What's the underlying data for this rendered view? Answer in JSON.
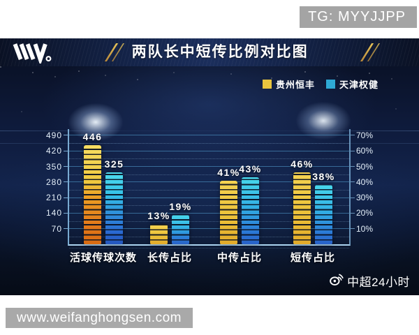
{
  "page": {
    "tg_badge": "TG: MYYJJPP",
    "url_badge": "www.weifanghongsen.com"
  },
  "header": {
    "logo": "W。",
    "title": "两队长中短传比例对比图"
  },
  "legend": [
    {
      "label": "贵州恒丰",
      "color": "#e9c53e"
    },
    {
      "label": "天津权健",
      "color": "#2ea9d4"
    }
  ],
  "credit": {
    "icon": "weibo-icon",
    "label": "中超24小时"
  },
  "chart_data": {
    "type": "bar",
    "title": "两队长中短传比例对比图",
    "categories": [
      "活球传球次数",
      "长传占比",
      "中传占比",
      "短传占比"
    ],
    "series": [
      {
        "name": "贵州恒丰",
        "color": "#e9c53e",
        "values": [
          446,
          13,
          41,
          46
        ],
        "labels": [
          "446",
          "13%",
          "41%",
          "46%"
        ]
      },
      {
        "name": "天津权健",
        "color": "#2ea9d4",
        "values": [
          325,
          19,
          43,
          38
        ],
        "labels": [
          "325",
          "19%",
          "43%",
          "38%"
        ]
      }
    ],
    "left_axis": {
      "label": "",
      "ticks": [
        70,
        140,
        210,
        280,
        350,
        420,
        490
      ],
      "applies_to_category": "活球传球次数"
    },
    "right_axis": {
      "label": "",
      "ticks": [
        "10%",
        "20%",
        "30%",
        "40%",
        "50%",
        "60%",
        "70%"
      ],
      "applies_to_categories": [
        "长传占比",
        "中传占比",
        "短传占比"
      ]
    },
    "axis_alignment": "10% on right axis aligns with 70 on left axis",
    "grid": true,
    "legend_position": "top-right",
    "background": "night stadium with floodlights"
  }
}
